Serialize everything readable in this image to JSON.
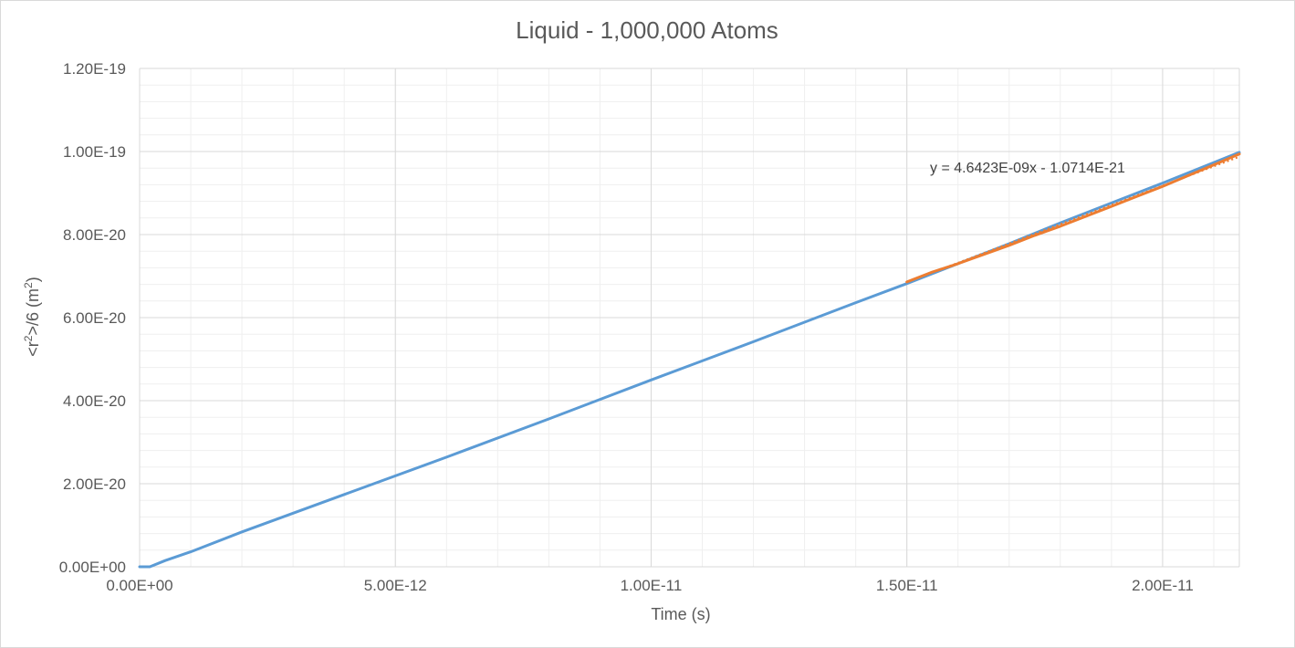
{
  "chart_data": {
    "type": "line",
    "title": "Liquid - 1,000,000 Atoms",
    "xlabel": "Time (s)",
    "ylabel_parts": [
      "<r",
      "2",
      ">/6 (m",
      "2",
      ")"
    ],
    "xlim": [
      0,
      2.15e-11
    ],
    "ylim": [
      0,
      1.2e-19
    ],
    "x_ticks": [
      {
        "value": 0,
        "label": "0.00E+00"
      },
      {
        "value": 5e-12,
        "label": "5.00E-12"
      },
      {
        "value": 1e-11,
        "label": "1.00E-11"
      },
      {
        "value": 1.5e-11,
        "label": "1.50E-11"
      },
      {
        "value": 2e-11,
        "label": "2.00E-11"
      }
    ],
    "y_ticks": [
      {
        "value": 0,
        "label": "0.00E+00"
      },
      {
        "value": 2e-20,
        "label": "2.00E-20"
      },
      {
        "value": 4e-20,
        "label": "4.00E-20"
      },
      {
        "value": 6e-20,
        "label": "6.00E-20"
      },
      {
        "value": 8e-20,
        "label": "8.00E-20"
      },
      {
        "value": 1e-19,
        "label": "1.00E-19"
      },
      {
        "value": 1.2e-19,
        "label": "1.20E-19"
      }
    ],
    "grid": true,
    "minor_grid": true,
    "series": [
      {
        "color": "#5b9bd5",
        "x": [
          0,
          2e-13,
          5e-13,
          1e-12,
          2e-12,
          4e-12,
          6e-12,
          8e-12,
          1e-11,
          1.2e-11,
          1.4e-11,
          1.5e-11,
          1.6e-11,
          1.7e-11,
          1.8e-11,
          1.9e-11,
          2e-11,
          2.15e-11
        ],
        "y": [
          0,
          0,
          1.5e-21,
          3.6e-21,
          8.4e-21,
          1.74e-20,
          2.64e-20,
          3.56e-20,
          4.5e-20,
          5.42e-20,
          6.36e-20,
          6.82e-20,
          7.3e-20,
          7.78e-20,
          8.28e-20,
          8.76e-20,
          9.24e-20,
          9.98e-20
        ]
      },
      {
        "color": "#ed7d31",
        "x": [
          1.5e-11,
          1.55e-11,
          1.6e-11,
          1.65e-11,
          1.7e-11,
          1.75e-11,
          1.8e-11,
          1.85e-11,
          1.9e-11,
          1.95e-11,
          2e-11,
          2.05e-11,
          2.1e-11,
          2.15e-11
        ],
        "y": [
          6.86e-20,
          7.1e-20,
          7.3e-20,
          7.52e-20,
          7.74e-20,
          7.98e-20,
          8.2e-20,
          8.44e-20,
          8.68e-20,
          8.92e-20,
          9.16e-20,
          9.42e-20,
          9.68e-20,
          9.94e-20
        ]
      }
    ],
    "trendline": {
      "color": "#ed7d31",
      "style": "dotted",
      "slope": 4.6423e-09,
      "intercept": -1.0714e-21,
      "x_range": [
        1.5e-11,
        2.15e-11
      ],
      "equation": "y = 4.6423E-09x - 1.0714E-21"
    }
  }
}
